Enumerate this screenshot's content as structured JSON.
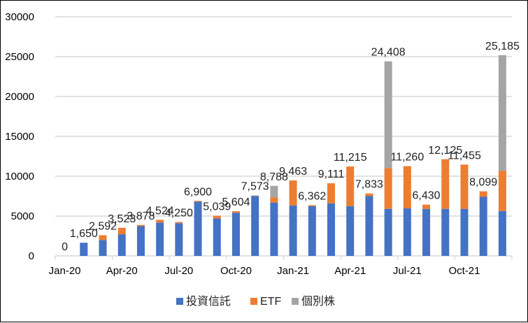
{
  "chart_data": {
    "type": "bar",
    "stacked": true,
    "title": "",
    "xlabel": "",
    "ylabel": "",
    "ylim": [
      0,
      30000
    ],
    "yticks": [
      0,
      5000,
      10000,
      15000,
      20000,
      25000,
      30000
    ],
    "grid": true,
    "legend_position": "bottom",
    "categories": [
      "Jan-20",
      "Feb-20",
      "Mar-20",
      "Apr-20",
      "May-20",
      "Jun-20",
      "Jul-20",
      "Aug-20",
      "Sep-20",
      "Oct-20",
      "Nov-20",
      "Dec-20",
      "Jan-21",
      "Feb-21",
      "Mar-21",
      "Apr-21",
      "May-21",
      "Jun-21",
      "Jul-21",
      "Aug-21",
      "Sep-21",
      "Oct-21",
      "Nov-21",
      "Dec-21"
    ],
    "xtick_labels": [
      "Jan-20",
      "Apr-20",
      "Jul-20",
      "Oct-20",
      "Jan-21",
      "Apr-21",
      "Jul-21",
      "Oct-21"
    ],
    "series": [
      {
        "name": "投資信託",
        "color": "#4472C4",
        "values": [
          0,
          1650,
          1990,
          2710,
          3730,
          4190,
          4100,
          6800,
          4700,
          5420,
          7530,
          6690,
          6330,
          6240,
          6600,
          6240,
          7500,
          5900,
          5960,
          5900,
          5900,
          5900,
          7410,
          5630
        ]
      },
      {
        "name": "ETF",
        "color": "#ED7D31",
        "values": [
          0,
          0,
          602,
          813,
          148,
          334,
          150,
          100,
          339,
          184,
          43,
          660,
          3133,
          122,
          2511,
          4975,
          333,
          5120,
          5300,
          530,
          6225,
          5555,
          689,
          5030
        ]
      },
      {
        "name": "個別株",
        "color": "#A5A5A5",
        "values": [
          0,
          0,
          0,
          0,
          0,
          0,
          0,
          0,
          0,
          0,
          0,
          1438,
          0,
          0,
          0,
          0,
          0,
          13388,
          0,
          0,
          0,
          0,
          0,
          14525
        ]
      }
    ],
    "totals_labels": [
      "0",
      "1,650",
      "2,592",
      "3,523",
      "3,878",
      "4,524",
      "4,250",
      "6,900",
      "5,039",
      "5,604",
      "7,573",
      "8,788",
      "9,463",
      "6,362",
      "9,111",
      "11,215",
      "7,833",
      "24,408",
      "11,260",
      "6,430",
      "12,125",
      "11,455",
      "8,099",
      "25,185"
    ]
  }
}
